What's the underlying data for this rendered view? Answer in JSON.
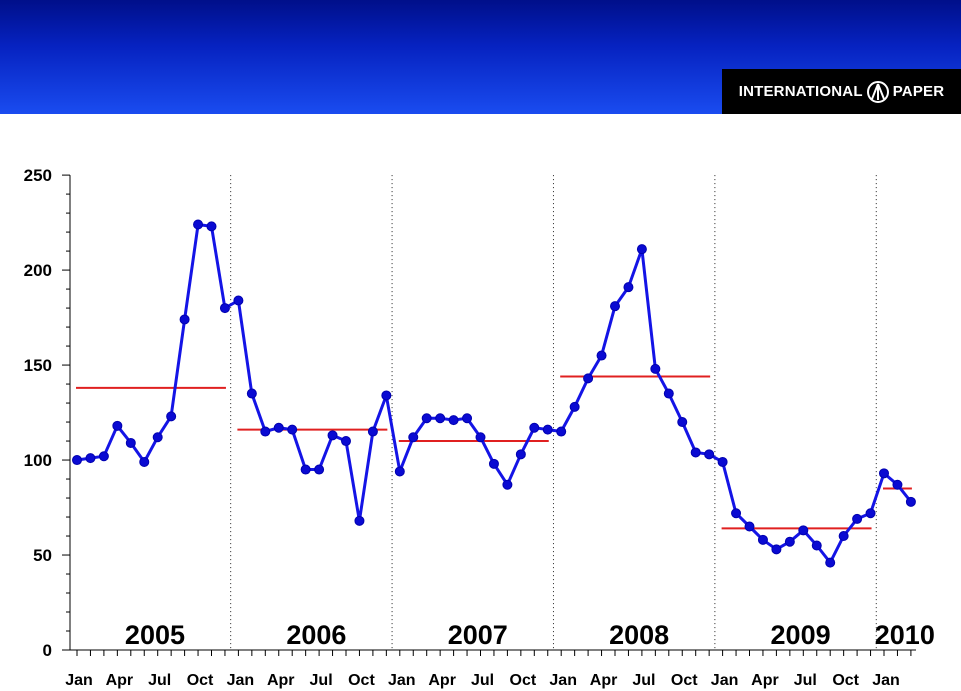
{
  "header": {
    "logo_text_left": "INTERNATIONAL",
    "logo_text_right": "PAPER",
    "colors": {
      "banner_top": "#000f8a",
      "banner_bottom": "#1a4cf0",
      "logo_bg": "#000000"
    }
  },
  "chart_data": {
    "type": "line",
    "title": "",
    "xlabel": "",
    "ylabel": "",
    "ylim": [
      0,
      250
    ],
    "yticks": [
      0,
      50,
      100,
      150,
      200,
      250
    ],
    "grid": "vertical dotted separators between years",
    "legend": "none",
    "years": [
      "2005",
      "2006",
      "2007",
      "2008",
      "2009",
      "2010"
    ],
    "x_tick_labels": [
      "Jan",
      "Apr",
      "Jul",
      "Oct",
      "Jan",
      "Apr",
      "Jul",
      "Oct",
      "Jan",
      "Apr",
      "Jul",
      "Oct",
      "Jan",
      "Apr",
      "Jul",
      "Oct",
      "Jan",
      "Apr",
      "Jul",
      "Oct",
      "Jan"
    ],
    "x_tick_months": [
      0,
      3,
      6,
      9,
      12,
      15,
      18,
      21,
      24,
      27,
      30,
      33,
      36,
      39,
      42,
      45,
      48,
      51,
      54,
      57,
      60
    ],
    "x_range_months": [
      0,
      62
    ],
    "series": [
      {
        "color": "#1414e6",
        "marker_color": "#0a0ad2",
        "values": [
          100,
          101,
          102,
          118,
          109,
          99,
          112,
          123,
          174,
          224,
          223,
          180,
          184,
          135,
          115,
          117,
          116,
          95,
          95,
          113,
          110,
          68,
          115,
          134,
          94,
          112,
          122,
          122,
          121,
          122,
          112,
          98,
          87,
          103,
          117,
          116,
          115,
          128,
          143,
          155,
          181,
          191,
          211,
          148,
          135,
          120,
          104,
          103,
          99,
          72,
          65,
          58,
          53,
          57,
          63,
          55,
          46,
          60,
          69,
          72,
          93,
          87,
          78
        ]
      }
    ],
    "annual_averages": [
      {
        "year": "2005",
        "value": 138
      },
      {
        "year": "2006",
        "value": 116
      },
      {
        "year": "2007",
        "value": 110
      },
      {
        "year": "2008",
        "value": 144
      },
      {
        "year": "2009",
        "value": 64
      },
      {
        "year": "2010",
        "value": 85
      }
    ],
    "average_color": "#e02020"
  }
}
